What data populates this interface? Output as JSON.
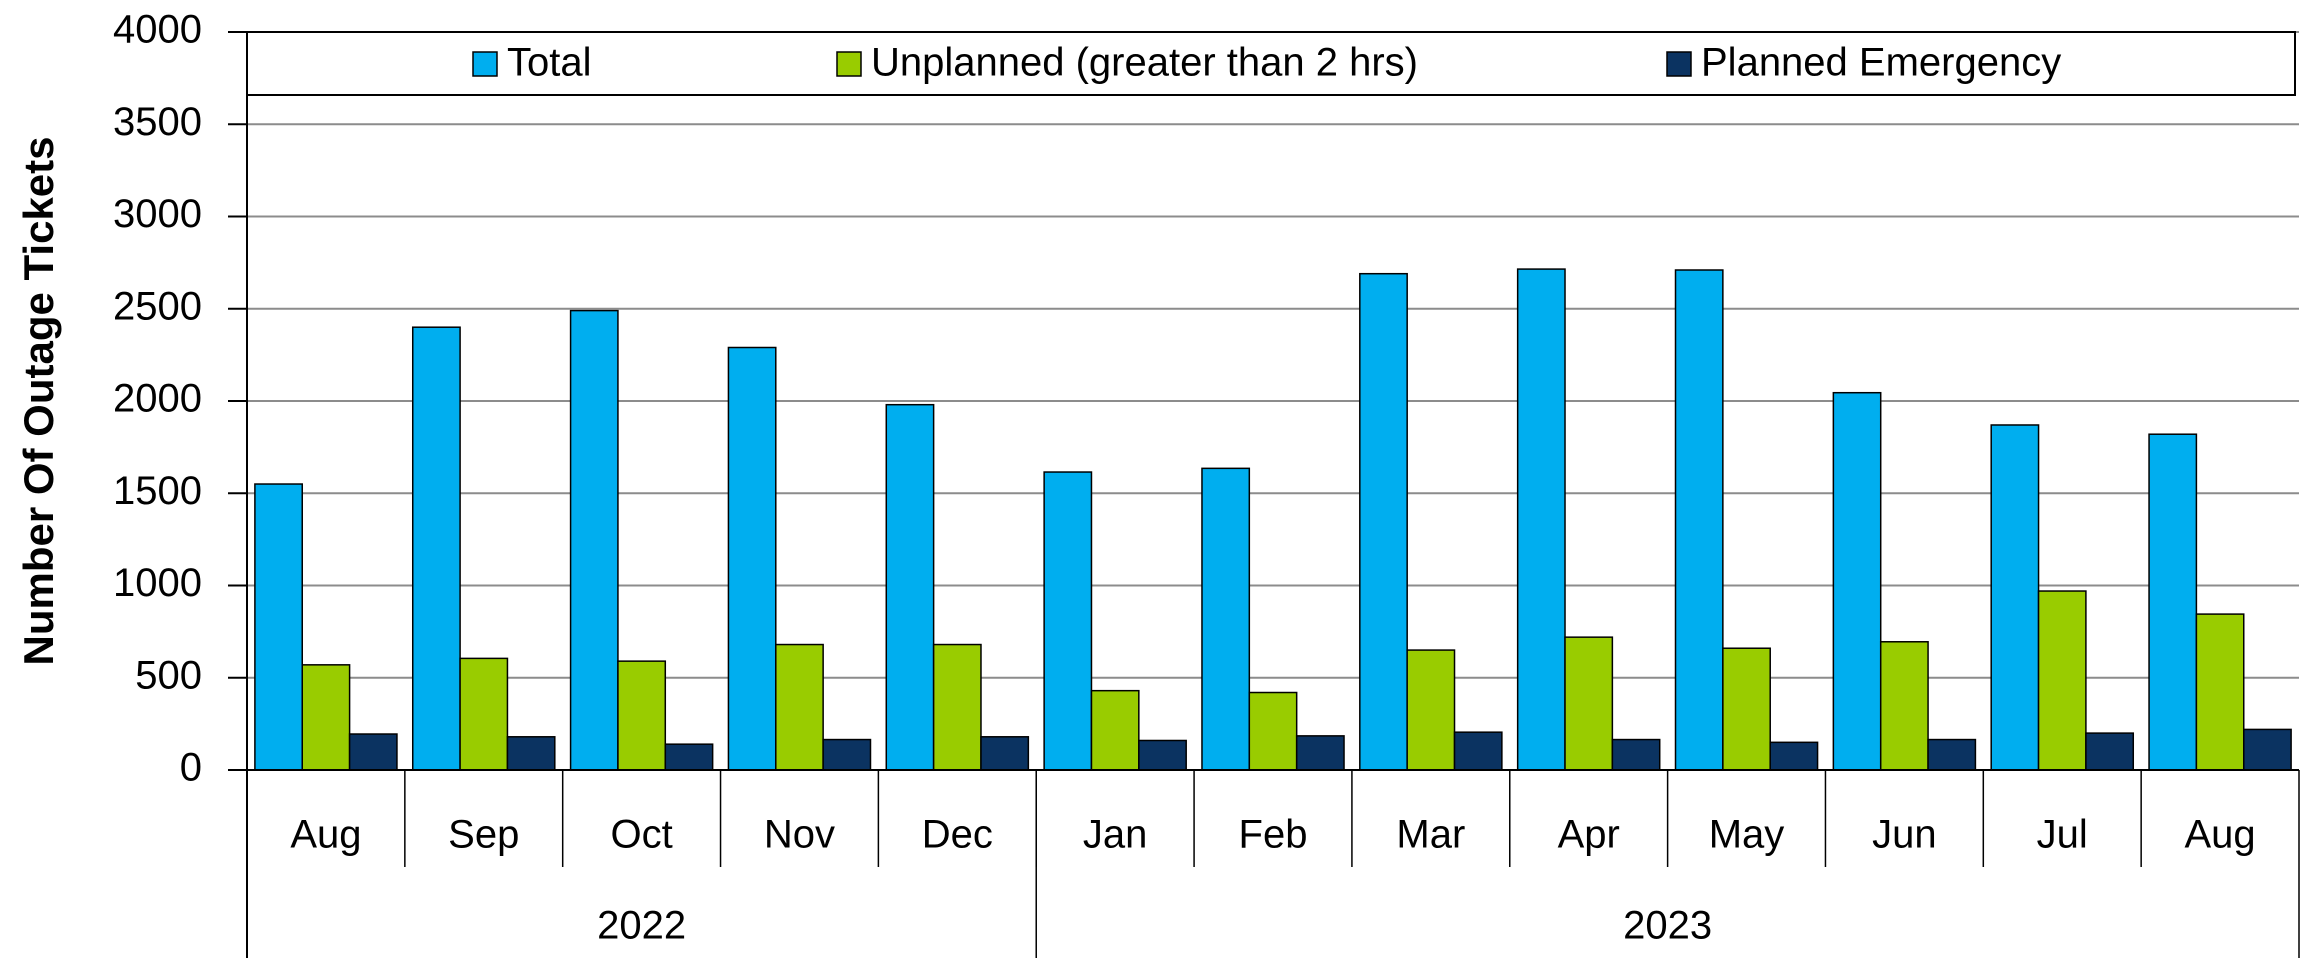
{
  "chart_data": {
    "type": "bar",
    "y_label": "Number Of Outage Tickets",
    "groups": [
      {
        "name": "2022",
        "categories": [
          "Aug",
          "Sep",
          "Oct",
          "Nov",
          "Dec"
        ]
      },
      {
        "name": "2023",
        "categories": [
          "Jan",
          "Feb",
          "Mar",
          "Apr",
          "May",
          "Jun",
          "Jul",
          "Aug"
        ]
      }
    ],
    "series": [
      {
        "name": "Total",
        "color": "#00aeef",
        "values": [
          1550,
          2400,
          2490,
          2290,
          1980,
          1615,
          1635,
          2690,
          2715,
          2710,
          2045,
          1870,
          1820
        ]
      },
      {
        "name": "Unplanned (greater than 2 hrs)",
        "color": "#99cc00",
        "values": [
          570,
          605,
          590,
          680,
          680,
          430,
          420,
          650,
          720,
          660,
          695,
          970,
          845
        ]
      },
      {
        "name": "Planned Emergency",
        "color": "#0b3361",
        "values": [
          195,
          180,
          140,
          165,
          180,
          160,
          185,
          205,
          165,
          150,
          165,
          200,
          220
        ]
      }
    ],
    "ylim": [
      0,
      4000
    ],
    "yticks": [
      0,
      500,
      1000,
      1500,
      2000,
      2500,
      3000,
      3500,
      4000
    ],
    "grid": true,
    "legend": "top"
  }
}
